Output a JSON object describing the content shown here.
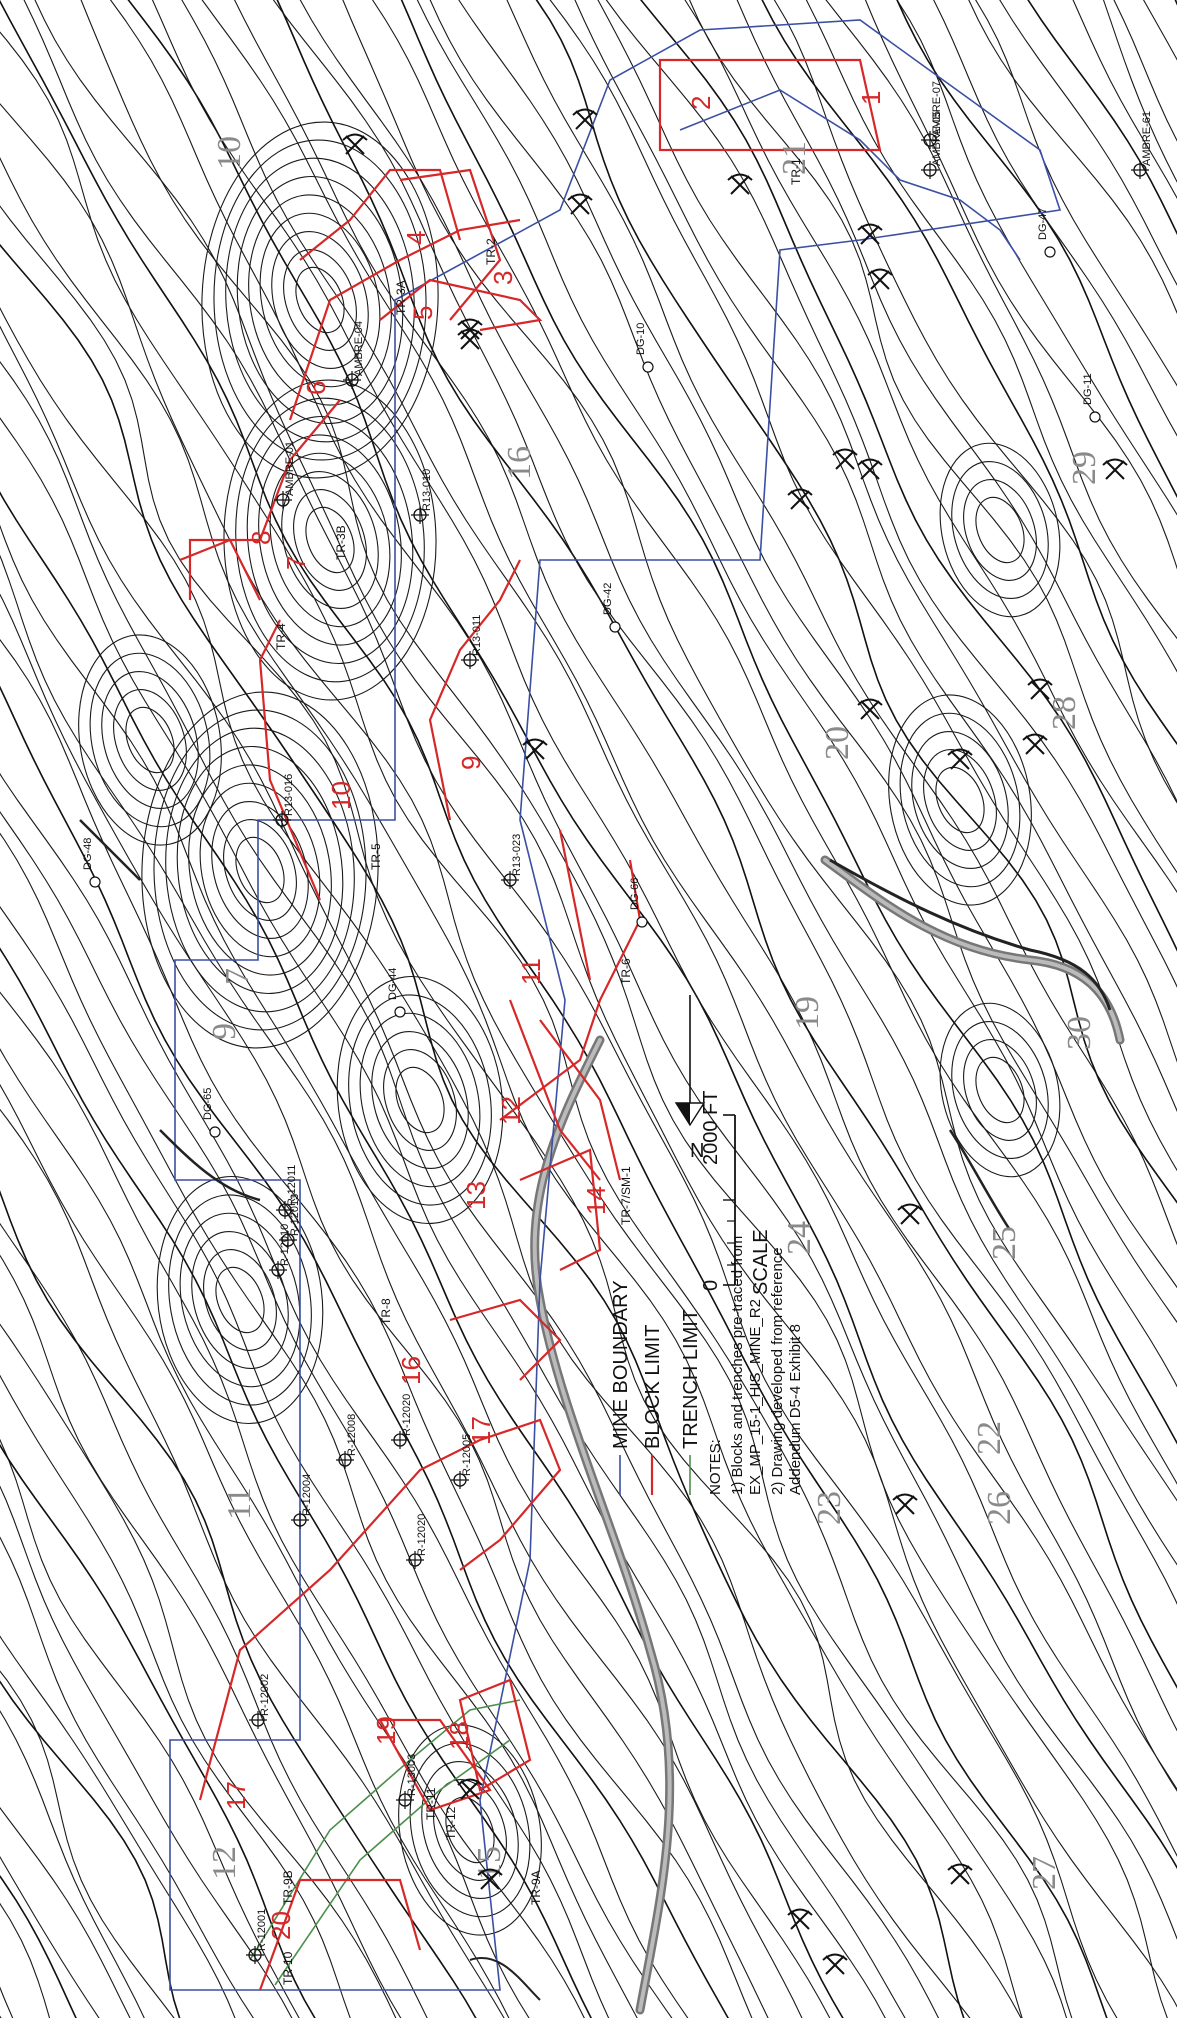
{
  "map": {
    "colors": {
      "contour": "#1a1a1a",
      "mine_boundary": "#3b4fa3",
      "block_limit": "#d62828",
      "trench_limit": "#4d8f4d",
      "road": "#777777"
    },
    "sections": [
      "10",
      "9",
      "7",
      "11",
      "12",
      "15",
      "16",
      "20",
      "19",
      "24",
      "23",
      "22",
      "21",
      "26",
      "25",
      "27",
      "30",
      "28",
      "29"
    ],
    "blocks": [
      "1",
      "2",
      "3",
      "4",
      "5",
      "6",
      "7",
      "8",
      "9",
      "10",
      "11",
      "12",
      "13",
      "14",
      "16",
      "17",
      "18",
      "19",
      "20",
      "17"
    ],
    "drillholes": [
      "R-13003",
      "R-12001",
      "R-12002",
      "R-12020",
      "R-12013",
      "R-12011",
      "R13-011",
      "R13-023",
      "R13-010",
      "R13-016",
      "AMBRE-01",
      "AMBRE-04",
      "AMBRE-05",
      "AMBRE-07",
      "AMBRE-61",
      "R-12008",
      "R-12005",
      "R-12004",
      "R-12010",
      "R-12020"
    ],
    "trenches": [
      "TR-1",
      "TR-2",
      "TR-3A",
      "TR-3B",
      "TR-4",
      "TR-5",
      "TR-6",
      "TR-7/SM-1",
      "TR-8",
      "TR-9A",
      "TR-9B",
      "TR-10",
      "TR-11",
      "TR-12"
    ],
    "other_labels": [
      "DG-10",
      "DG-11",
      "DG-42",
      "DG-47",
      "DG-48",
      "DG-65",
      "DG-66",
      "DG-44"
    ],
    "north_label": "N",
    "scale": {
      "zero": "0",
      "distance": "2000 FT",
      "label": "SCALE"
    },
    "legend": {
      "mine_boundary": "MINE BOUNDARY",
      "block_limit": "BLOCK LIMIT",
      "trench_limit": "TRENCH LIMIT"
    },
    "notes": {
      "title": "NOTES:",
      "items": [
        "1)   Blocks and trenches pre-traced from",
        "       EX_MP_15-1_HIS_MINE_R2",
        "2)   Drawing developed from reference",
        "       Addendum D5-4 Exhibit 8"
      ]
    }
  }
}
